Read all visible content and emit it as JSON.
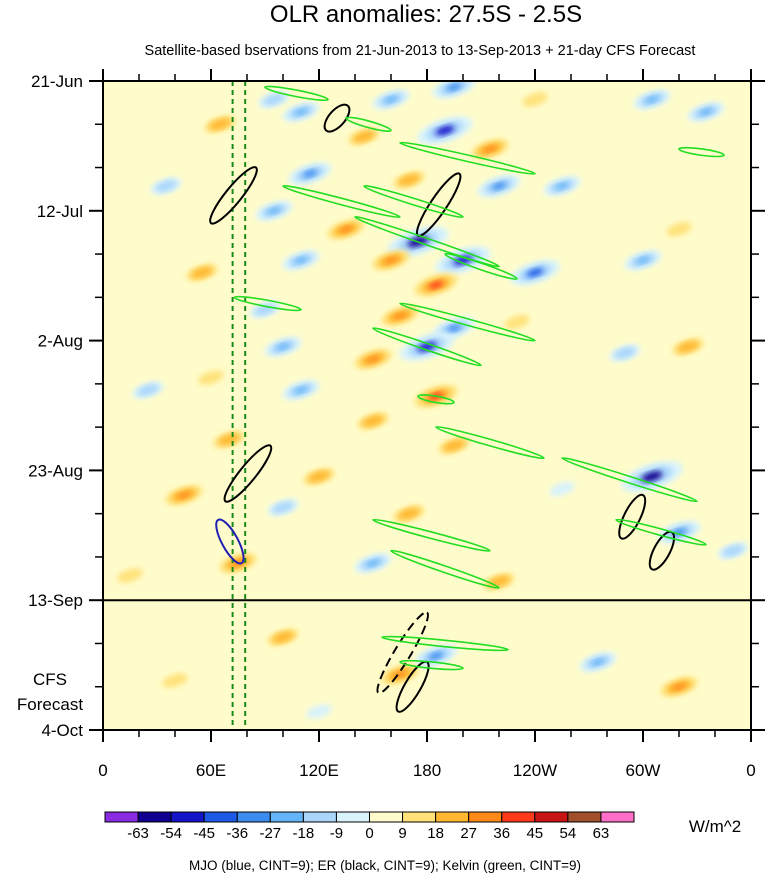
{
  "chart_data": {
    "type": "heatmap",
    "title": "OLR anomalies: 27.5S - 2.5S",
    "subtitle": "Satellite-based bservations from 21-Jun-2013 to 13-Sep-2013 + 21-day CFS Forecast",
    "x_ticks": [
      "0",
      "60E",
      "120E",
      "180",
      "120W",
      "60W",
      "0"
    ],
    "x_values": [
      0,
      60,
      120,
      180,
      240,
      300,
      360
    ],
    "xlim": [
      0,
      360
    ],
    "y_ticks": [
      "21-Jun",
      "12-Jul",
      "2-Aug",
      "23-Aug",
      "13-Sep",
      "4-Oct"
    ],
    "y_dates": [
      "2013-06-21",
      "2013-07-12",
      "2013-08-02",
      "2013-08-23",
      "2013-09-13",
      "2013-10-04"
    ],
    "ylim": [
      "2013-06-21",
      "2013-10-04"
    ],
    "y_direction": "downward",
    "observation_end": "2013-09-13",
    "forecast_label_lines": [
      "CFS",
      "Forecast"
    ],
    "colorbar": {
      "unit": "W/m^2",
      "tick_labels": [
        "-63",
        "-54",
        "-45",
        "-36",
        "-27",
        "-18",
        "-9",
        "0",
        "9",
        "18",
        "27",
        "36",
        "45",
        "54",
        "63"
      ],
      "levels": [
        -63,
        -54,
        -45,
        -36,
        -27,
        -18,
        -9,
        0,
        9,
        18,
        27,
        36,
        45,
        54,
        63
      ],
      "colors": [
        "#8a2be2",
        "#0f0090",
        "#1414c8",
        "#1e5ae6",
        "#3c8cf0",
        "#64b4f8",
        "#aad6fa",
        "#d8f3fc",
        "#fffccb",
        "#ffe27a",
        "#ffb830",
        "#ff8a1a",
        "#ff3a1a",
        "#c81414",
        "#a0502a",
        "#ff6ec8"
      ]
    },
    "footnote": "MJO (blue, CINT=9); ER (black, CINT=9); Kelvin (green, CINT=9)",
    "series": [
      {
        "name": "MJO (blue, CINT=9)",
        "color": "#1f1fb4"
      },
      {
        "name": "ER (black, CINT=9)",
        "color": "#000000"
      },
      {
        "name": "Kelvin (green, CINT=9)",
        "color": "#22dd22"
      }
    ],
    "reference_lines_lon": [
      72,
      79
    ],
    "reference_line_color": "#1a8a1a",
    "anomaly_blobs": [
      {
        "lon": 95,
        "date": "2013-06-24",
        "v": -18
      },
      {
        "lon": 110,
        "date": "2013-06-26",
        "v": -27
      },
      {
        "lon": 160,
        "date": "2013-06-24",
        "v": -27
      },
      {
        "lon": 190,
        "date": "2013-06-29",
        "v": -54
      },
      {
        "lon": 195,
        "date": "2013-06-22",
        "v": -36
      },
      {
        "lon": 145,
        "date": "2013-06-30",
        "v": 18
      },
      {
        "lon": 65,
        "date": "2013-06-28",
        "v": 18
      },
      {
        "lon": 215,
        "date": "2013-07-02",
        "v": 27
      },
      {
        "lon": 240,
        "date": "2013-06-24",
        "v": 9
      },
      {
        "lon": 305,
        "date": "2013-06-24",
        "v": -27
      },
      {
        "lon": 335,
        "date": "2013-06-26",
        "v": -27
      },
      {
        "lon": 115,
        "date": "2013-07-06",
        "v": -36
      },
      {
        "lon": 170,
        "date": "2013-07-07",
        "v": 18
      },
      {
        "lon": 220,
        "date": "2013-07-08",
        "v": -36
      },
      {
        "lon": 255,
        "date": "2013-07-08",
        "v": -27
      },
      {
        "lon": 95,
        "date": "2013-07-12",
        "v": -27
      },
      {
        "lon": 135,
        "date": "2013-07-15",
        "v": 27
      },
      {
        "lon": 175,
        "date": "2013-07-17",
        "v": -63
      },
      {
        "lon": 200,
        "date": "2013-07-20",
        "v": -54
      },
      {
        "lon": 160,
        "date": "2013-07-20",
        "v": 27
      },
      {
        "lon": 110,
        "date": "2013-07-20",
        "v": -27
      },
      {
        "lon": 240,
        "date": "2013-07-22",
        "v": -45
      },
      {
        "lon": 185,
        "date": "2013-07-24",
        "v": 36
      },
      {
        "lon": 300,
        "date": "2013-07-20",
        "v": -27
      },
      {
        "lon": 320,
        "date": "2013-07-15",
        "v": 9
      },
      {
        "lon": 55,
        "date": "2013-07-22",
        "v": 18
      },
      {
        "lon": 35,
        "date": "2013-07-08",
        "v": -18
      },
      {
        "lon": 90,
        "date": "2013-07-28",
        "v": -18
      },
      {
        "lon": 165,
        "date": "2013-07-29",
        "v": 27
      },
      {
        "lon": 195,
        "date": "2013-07-31",
        "v": -36
      },
      {
        "lon": 230,
        "date": "2013-07-30",
        "v": 9
      },
      {
        "lon": 150,
        "date": "2013-08-05",
        "v": 27
      },
      {
        "lon": 180,
        "date": "2013-08-03",
        "v": -54
      },
      {
        "lon": 100,
        "date": "2013-08-03",
        "v": -27
      },
      {
        "lon": 290,
        "date": "2013-08-04",
        "v": -18
      },
      {
        "lon": 325,
        "date": "2013-08-03",
        "v": 18
      },
      {
        "lon": 185,
        "date": "2013-08-11",
        "v": 36
      },
      {
        "lon": 110,
        "date": "2013-08-10",
        "v": -27
      },
      {
        "lon": 60,
        "date": "2013-08-08",
        "v": 9
      },
      {
        "lon": 25,
        "date": "2013-08-10",
        "v": -18
      },
      {
        "lon": 150,
        "date": "2013-08-15",
        "v": 18
      },
      {
        "lon": 195,
        "date": "2013-08-19",
        "v": 18
      },
      {
        "lon": 70,
        "date": "2013-08-18",
        "v": 18
      },
      {
        "lon": 120,
        "date": "2013-08-24",
        "v": 18
      },
      {
        "lon": 305,
        "date": "2013-08-24",
        "v": -63
      },
      {
        "lon": 255,
        "date": "2013-08-26",
        "v": -9
      },
      {
        "lon": 45,
        "date": "2013-08-27",
        "v": 27
      },
      {
        "lon": 100,
        "date": "2013-08-29",
        "v": -18
      },
      {
        "lon": 170,
        "date": "2013-08-30",
        "v": 18
      },
      {
        "lon": 320,
        "date": "2013-09-02",
        "v": -36
      },
      {
        "lon": 350,
        "date": "2013-09-05",
        "v": -18
      },
      {
        "lon": 75,
        "date": "2013-09-07",
        "v": 27
      },
      {
        "lon": 150,
        "date": "2013-09-07",
        "v": -27
      },
      {
        "lon": 220,
        "date": "2013-09-10",
        "v": 18
      },
      {
        "lon": 15,
        "date": "2013-09-09",
        "v": 9
      },
      {
        "lon": 100,
        "date": "2013-09-19",
        "v": 18
      },
      {
        "lon": 185,
        "date": "2013-09-22",
        "v": -36
      },
      {
        "lon": 165,
        "date": "2013-09-25",
        "v": 27
      },
      {
        "lon": 275,
        "date": "2013-09-23",
        "v": -27
      },
      {
        "lon": 320,
        "date": "2013-09-27",
        "v": 27
      },
      {
        "lon": 40,
        "date": "2013-09-26",
        "v": 9
      },
      {
        "lon": 120,
        "date": "2013-10-01",
        "v": -9
      }
    ],
    "contours": [
      {
        "series": "ER",
        "lon1": 124,
        "date1": "2013-06-29",
        "lon2": 136,
        "date2": "2013-06-25",
        "dash": false
      },
      {
        "series": "ER",
        "lon1": 60,
        "date1": "2013-07-14",
        "lon2": 85,
        "date2": "2013-07-05",
        "dash": false
      },
      {
        "series": "ER",
        "lon1": 175,
        "date1": "2013-07-16",
        "lon2": 198,
        "date2": "2013-07-06",
        "dash": false
      },
      {
        "series": "ER",
        "lon1": 68,
        "date1": "2013-08-28",
        "lon2": 93,
        "date2": "2013-08-19",
        "dash": false
      },
      {
        "series": "ER",
        "lon1": 288,
        "date1": "2013-09-03",
        "lon2": 300,
        "date2": "2013-08-27",
        "dash": false
      },
      {
        "series": "ER",
        "lon1": 305,
        "date1": "2013-09-08",
        "lon2": 316,
        "date2": "2013-09-02",
        "dash": false
      },
      {
        "series": "ER",
        "lon1": 153,
        "date1": "2013-09-28",
        "lon2": 180,
        "date2": "2013-09-15",
        "dash": true
      },
      {
        "series": "ER",
        "lon1": 164,
        "date1": "2013-10-01",
        "lon2": 180,
        "date2": "2013-09-23",
        "dash": false
      },
      {
        "series": "MJO",
        "lon1": 64,
        "date1": "2013-08-31",
        "lon2": 77,
        "date2": "2013-09-07",
        "dash": false
      },
      {
        "series": "Kelvin",
        "lon1": 90,
        "date1": "2013-06-22",
        "lon2": 125,
        "date2": "2013-06-24",
        "dash": false
      },
      {
        "series": "Kelvin",
        "lon1": 135,
        "date1": "2013-06-27",
        "lon2": 160,
        "date2": "2013-06-29",
        "dash": false
      },
      {
        "series": "Kelvin",
        "lon1": 165,
        "date1": "2013-07-01",
        "lon2": 240,
        "date2": "2013-07-06",
        "dash": false
      },
      {
        "series": "Kelvin",
        "lon1": 320,
        "date1": "2013-07-02",
        "lon2": 345,
        "date2": "2013-07-03",
        "dash": false
      },
      {
        "series": "Kelvin",
        "lon1": 100,
        "date1": "2013-07-08",
        "lon2": 165,
        "date2": "2013-07-13",
        "dash": false
      },
      {
        "series": "Kelvin",
        "lon1": 145,
        "date1": "2013-07-08",
        "lon2": 200,
        "date2": "2013-07-13",
        "dash": false
      },
      {
        "series": "Kelvin",
        "lon1": 140,
        "date1": "2013-07-13",
        "lon2": 220,
        "date2": "2013-07-21",
        "dash": false
      },
      {
        "series": "Kelvin",
        "lon1": 190,
        "date1": "2013-07-19",
        "lon2": 230,
        "date2": "2013-07-23",
        "dash": false
      },
      {
        "series": "Kelvin",
        "lon1": 73,
        "date1": "2013-07-26",
        "lon2": 110,
        "date2": "2013-07-28",
        "dash": false
      },
      {
        "series": "Kelvin",
        "lon1": 165,
        "date1": "2013-07-27",
        "lon2": 240,
        "date2": "2013-08-02",
        "dash": false
      },
      {
        "series": "Kelvin",
        "lon1": 150,
        "date1": "2013-07-31",
        "lon2": 210,
        "date2": "2013-08-06",
        "dash": false
      },
      {
        "series": "Kelvin",
        "lon1": 175,
        "date1": "2013-08-11",
        "lon2": 195,
        "date2": "2013-08-12",
        "dash": false
      },
      {
        "series": "Kelvin",
        "lon1": 185,
        "date1": "2013-08-16",
        "lon2": 245,
        "date2": "2013-08-21",
        "dash": false
      },
      {
        "series": "Kelvin",
        "lon1": 255,
        "date1": "2013-08-21",
        "lon2": 330,
        "date2": "2013-08-28",
        "dash": false
      },
      {
        "series": "Kelvin",
        "lon1": 150,
        "date1": "2013-08-31",
        "lon2": 215,
        "date2": "2013-09-05",
        "dash": false
      },
      {
        "series": "Kelvin",
        "lon1": 285,
        "date1": "2013-08-31",
        "lon2": 335,
        "date2": "2013-09-04",
        "dash": false
      },
      {
        "series": "Kelvin",
        "lon1": 160,
        "date1": "2013-09-05",
        "lon2": 220,
        "date2": "2013-09-11",
        "dash": false
      },
      {
        "series": "Kelvin",
        "lon1": 155,
        "date1": "2013-09-19",
        "lon2": 225,
        "date2": "2013-09-21",
        "dash": false
      },
      {
        "series": "Kelvin",
        "lon1": 165,
        "date1": "2013-09-23",
        "lon2": 200,
        "date2": "2013-09-24",
        "dash": false
      }
    ]
  }
}
